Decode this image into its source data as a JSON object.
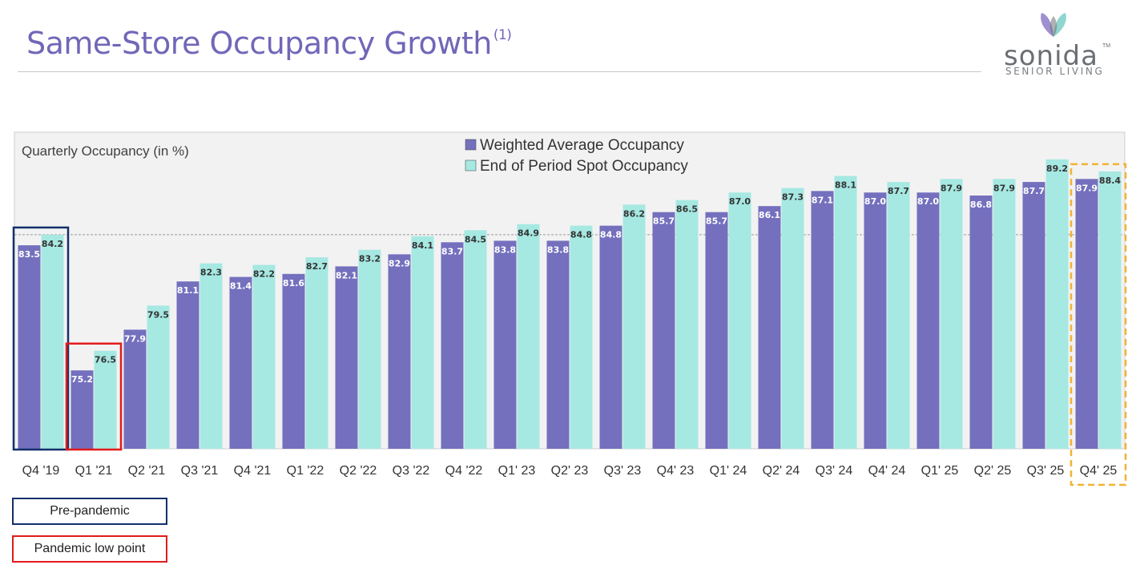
{
  "page": {
    "title": "Same-Store Occupancy Growth",
    "title_footnote": "(1)"
  },
  "logo": {
    "name": "sonida",
    "tm": "TM",
    "tagline": "SENIOR LIVING"
  },
  "chart_data": {
    "type": "bar",
    "title": "Quarterly Occupancy (in %)",
    "categories": [
      "Q4 '19",
      "Q1 '21",
      "Q2 '21",
      "Q3 '21",
      "Q4 '21",
      "Q1 '22",
      "Q2 '22",
      "Q3 '22",
      "Q4 '22",
      "Q1' 23",
      "Q2' 23",
      "Q3' 23",
      "Q4' 23",
      "Q1' 24",
      "Q2' 24",
      "Q3' 24",
      "Q4' 24",
      "Q1' 25",
      "Q2' 25",
      "Q3' 25",
      "Q4' 25"
    ],
    "series": [
      {
        "name": "Weighted Average Occupancy",
        "color": "#7470be",
        "values": [
          83.5,
          75.2,
          77.9,
          81.1,
          81.4,
          81.6,
          82.1,
          82.9,
          83.7,
          83.8,
          83.8,
          84.8,
          85.7,
          85.7,
          86.1,
          87.1,
          87.0,
          87.0,
          86.8,
          87.7,
          87.9
        ]
      },
      {
        "name": "End of Period Spot Occupancy",
        "color": "#a6e8e2",
        "values": [
          84.2,
          76.5,
          79.5,
          82.3,
          82.2,
          82.7,
          83.2,
          84.1,
          84.5,
          84.9,
          84.8,
          86.2,
          86.5,
          87.0,
          87.3,
          88.1,
          87.7,
          87.9,
          87.9,
          89.2,
          88.4
        ]
      }
    ],
    "ylim": [
      70,
      91
    ],
    "reference_line": 84.2,
    "legend_position": "top-center",
    "highlights": [
      {
        "category": "Q4 '19",
        "color": "#14306b",
        "style": "solid",
        "label": "Pre-pandemic"
      },
      {
        "category": "Q1 '21",
        "color": "#e21b1b",
        "style": "solid",
        "label": "Pandemic low point"
      },
      {
        "category": "Q4' 25",
        "color": "#f2b233",
        "style": "dashed",
        "label": ""
      }
    ]
  }
}
